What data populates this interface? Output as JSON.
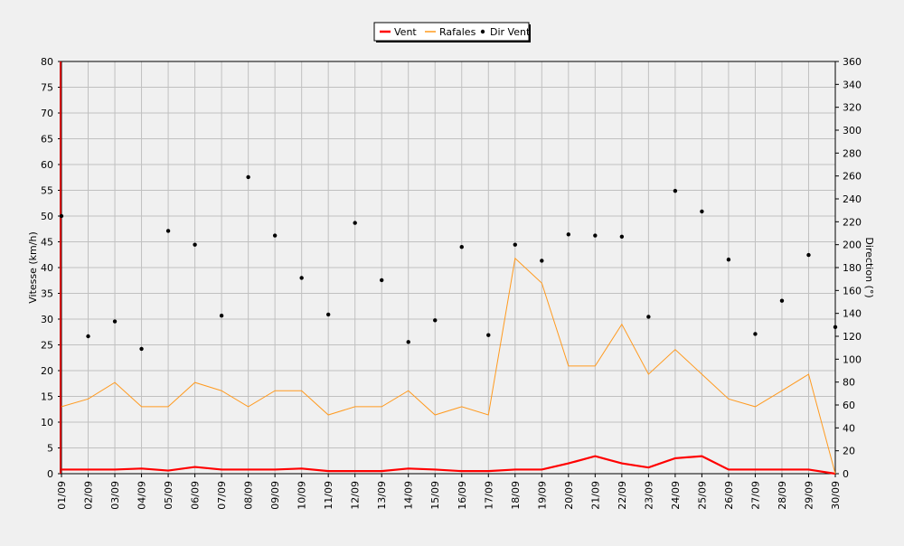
{
  "chart_data": {
    "type": "line",
    "categories": [
      "01/09",
      "02/09",
      "03/09",
      "04/09",
      "05/09",
      "06/09",
      "07/09",
      "08/09",
      "09/09",
      "10/09",
      "11/09",
      "12/09",
      "13/09",
      "14/09",
      "15/09",
      "16/09",
      "17/09",
      "18/09",
      "19/09",
      "20/09",
      "21/09",
      "22/09",
      "23/09",
      "24/09",
      "25/09",
      "26/09",
      "27/09",
      "28/09",
      "29/09",
      "30/09"
    ],
    "ylabel": "Vitesse (km/h)",
    "y2label": "Direction (°)",
    "ylim": [
      0,
      80
    ],
    "y2lim": [
      0,
      360
    ],
    "yticks": [
      0,
      5,
      10,
      15,
      20,
      25,
      30,
      35,
      40,
      45,
      50,
      55,
      60,
      65,
      70,
      75,
      80
    ],
    "y2ticks": [
      0,
      20,
      40,
      60,
      80,
      100,
      120,
      140,
      160,
      180,
      200,
      220,
      240,
      260,
      280,
      300,
      320,
      340,
      360
    ],
    "grid": true,
    "legend_position": "top-center",
    "series": [
      {
        "name": "Vent",
        "axis": "left",
        "style": "line",
        "color": "#ff0000",
        "values": [
          0.8,
          0.8,
          0.8,
          1.0,
          0.6,
          1.3,
          0.8,
          0.8,
          0.8,
          1.0,
          0.5,
          0.5,
          0.5,
          1.0,
          0.8,
          0.5,
          0.5,
          0.8,
          0.8,
          2.0,
          3.4,
          2.0,
          1.2,
          3.0,
          3.4,
          0.8,
          0.8,
          0.8,
          0.8,
          0.0
        ]
      },
      {
        "name": "Rafales",
        "axis": "left",
        "style": "line",
        "color": "#ff9a1f",
        "values": [
          13,
          14.5,
          17.7,
          13,
          13,
          17.7,
          16.1,
          13,
          16.1,
          16.1,
          11.4,
          13,
          13,
          16.1,
          11.4,
          13,
          11.4,
          41.8,
          37,
          20.9,
          20.9,
          29,
          19.3,
          24.1,
          19.3,
          14.5,
          13,
          16.1,
          19.3,
          0
        ]
      },
      {
        "name": "Dir Vent",
        "axis": "right",
        "style": "scatter",
        "color": "#000000",
        "values": [
          225,
          120,
          133,
          109,
          212,
          200,
          138,
          259,
          208,
          171,
          139,
          219,
          169,
          115,
          134,
          198,
          121,
          200,
          186,
          209,
          208,
          207,
          137,
          247,
          229,
          187,
          122,
          151,
          191,
          128
        ]
      }
    ]
  }
}
